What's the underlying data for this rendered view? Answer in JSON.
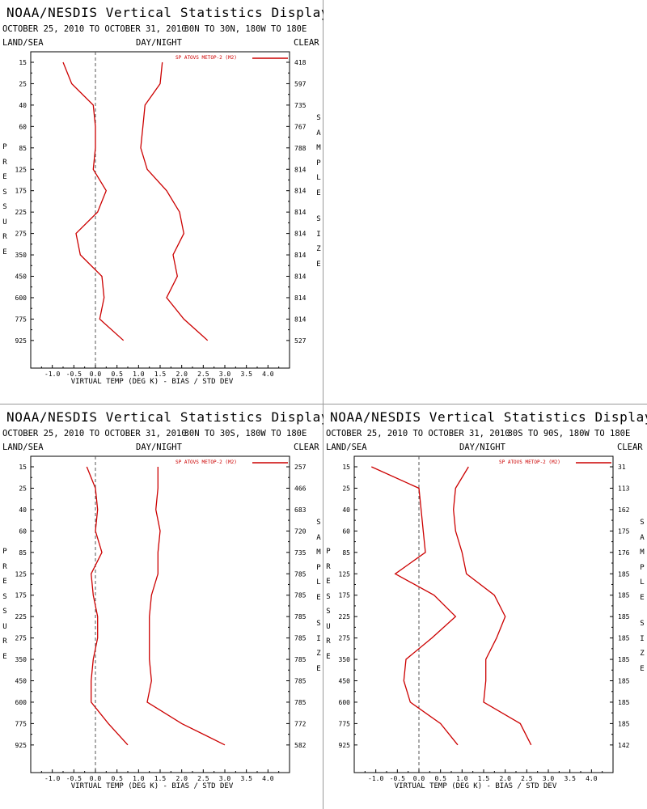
{
  "panel_labels": {
    "title": "NOAA/NESDIS Vertical Statistics Display",
    "land_sea": "LAND/SEA",
    "day_night": "DAY/NIGHT",
    "clear": "CLEAR",
    "pressure_word": "PRESSURE",
    "sample_word": "SAMPLE",
    "size_word": "SIZE",
    "legend": "SP ATOVS METOP-2 (M2)",
    "xlabel": "VIRTUAL TEMP (DEG K) - BIAS / STD DEV"
  },
  "colors": {
    "series": "#cc0000",
    "zero_line": "#555555",
    "axis": "#000000"
  },
  "chart_data": [
    {
      "type": "line",
      "subtitle": "OCTOBER 25, 2010 TO OCTOBER 31, 2010",
      "region": "30N TO 30N, 180W TO 180E",
      "pressure_levels": [
        "15",
        "25",
        "40",
        "60",
        "85",
        "125",
        "175",
        "225",
        "275",
        "350",
        "450",
        "600",
        "775",
        "925"
      ],
      "xlim": [
        -1.5,
        4.5
      ],
      "x_ticks": [
        "-1.0",
        "-0.5",
        "0.0",
        "0.5",
        "1.0",
        "1.5",
        "2.0",
        "2.5",
        "3.0",
        "3.5",
        "4.0"
      ],
      "bias": [
        -0.75,
        -0.55,
        -0.05,
        0.0,
        0.0,
        -0.05,
        0.25,
        0.05,
        -0.45,
        -0.35,
        0.15,
        0.2,
        0.1,
        0.65
      ],
      "std_dev": [
        1.55,
        1.5,
        1.15,
        1.1,
        1.05,
        1.2,
        1.65,
        1.95,
        2.05,
        1.8,
        1.9,
        1.65,
        2.05,
        2.6
      ],
      "sample_size": [
        "418",
        "597",
        "735",
        "767",
        "788",
        "814",
        "814",
        "814",
        "814",
        "814",
        "814",
        "814",
        "814",
        "527"
      ]
    },
    {
      "type": "line",
      "subtitle": "OCTOBER 25, 2010 TO OCTOBER 31, 2010",
      "region": "30N TO 30S, 180W TO 180E",
      "pressure_levels": [
        "15",
        "25",
        "40",
        "60",
        "85",
        "125",
        "175",
        "225",
        "275",
        "350",
        "450",
        "600",
        "775",
        "925"
      ],
      "xlim": [
        -1.5,
        4.5
      ],
      "x_ticks": [
        "-1.0",
        "-0.5",
        "0.0",
        "0.5",
        "1.0",
        "1.5",
        "2.0",
        "2.5",
        "3.0",
        "3.5",
        "4.0"
      ],
      "bias": [
        -0.2,
        0.0,
        0.05,
        0.0,
        0.15,
        -0.1,
        -0.05,
        0.05,
        0.05,
        -0.05,
        -0.1,
        -0.1,
        0.3,
        0.75
      ],
      "std_dev": [
        1.45,
        1.45,
        1.4,
        1.5,
        1.45,
        1.45,
        1.3,
        1.25,
        1.25,
        1.25,
        1.3,
        1.2,
        2.0,
        3.0
      ],
      "sample_size": [
        "257",
        "466",
        "683",
        "720",
        "735",
        "785",
        "785",
        "785",
        "785",
        "785",
        "785",
        "785",
        "772",
        "582"
      ]
    },
    {
      "type": "line",
      "subtitle": "OCTOBER 25, 2010 TO OCTOBER 31, 2010",
      "region": "30S TO 90S, 180W TO 180E",
      "pressure_levels": [
        "15",
        "25",
        "40",
        "60",
        "85",
        "125",
        "175",
        "225",
        "275",
        "350",
        "450",
        "600",
        "775",
        "925"
      ],
      "xlim": [
        -1.5,
        4.5
      ],
      "x_ticks": [
        "-1.0",
        "-0.5",
        "0.0",
        "0.5",
        "1.0",
        "1.5",
        "2.0",
        "2.5",
        "3.0",
        "3.5",
        "4.0"
      ],
      "bias": [
        -1.1,
        0.0,
        0.05,
        0.1,
        0.15,
        -0.55,
        0.35,
        0.85,
        0.3,
        -0.3,
        -0.35,
        -0.2,
        0.5,
        0.9
      ],
      "std_dev": [
        1.15,
        0.85,
        0.8,
        0.85,
        1.0,
        1.1,
        1.75,
        2.0,
        1.8,
        1.55,
        1.55,
        1.5,
        2.35,
        2.6
      ],
      "sample_size": [
        "31",
        "113",
        "162",
        "175",
        "176",
        "185",
        "185",
        "185",
        "185",
        "185",
        "185",
        "185",
        "185",
        "142"
      ]
    }
  ]
}
